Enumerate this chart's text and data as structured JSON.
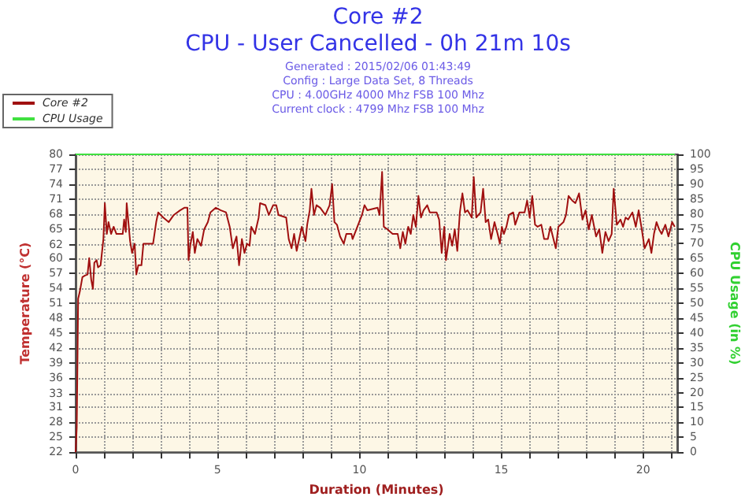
{
  "chart_data": {
    "type": "line",
    "title": "Core #2",
    "subtitle": "CPU - User Cancelled - 0h 21m 10s",
    "annotations": [
      "Generated : 2015/02/06 01:43:49",
      "Config : Large Data Set, 8 Threads",
      "CPU : 4.00GHz 4000 Mhz FSB 100 Mhz",
      "Current clock : 4799 Mhz FSB 100 Mhz"
    ],
    "xlabel": "Duration (Minutes)",
    "ylabel": "Temperature (°C)",
    "y2label": "CPU Usage (in %)",
    "series": [
      {
        "name": "Core #2",
        "color": "#a01010",
        "x": [
          0,
          0.04,
          0.09,
          0.15,
          0.24,
          0.33,
          0.42,
          0.48,
          0.55,
          0.61,
          0.66,
          0.74,
          0.79,
          0.88,
          0.98,
          1.03,
          1.1,
          1.16,
          1.25,
          1.34,
          1.44,
          1.66,
          1.71,
          1.77,
          1.8,
          1.86,
          1.92,
          1.99,
          2.08,
          2.14,
          2.21,
          2.32,
          2.39,
          2.73,
          2.84,
          2.91,
          3.09,
          3.28,
          3.46,
          3.68,
          3.83,
          3.94,
          3.98,
          4.05,
          4.13,
          4.2,
          4.29,
          4.42,
          4.53,
          4.66,
          4.75,
          4.94,
          5.12,
          5.3,
          5.43,
          5.54,
          5.67,
          5.76,
          5.86,
          5.95,
          6.04,
          6.13,
          6.19,
          6.32,
          6.45,
          6.5,
          6.69,
          6.81,
          6.96,
          7.07,
          7.15,
          7.42,
          7.51,
          7.61,
          7.7,
          7.79,
          7.97,
          8.1,
          8.16,
          8.25,
          8.31,
          8.4,
          8.49,
          8.62,
          8.8,
          8.95,
          9.04,
          9.12,
          9.21,
          9.32,
          9.45,
          9.54,
          9.72,
          9.76,
          10.09,
          10.18,
          10.28,
          10.64,
          10.71,
          10.8,
          10.86,
          10.99,
          11.17,
          11.35,
          11.44,
          11.53,
          11.62,
          11.72,
          11.81,
          11.9,
          11.99,
          12.08,
          12.17,
          12.26,
          12.39,
          12.48,
          12.72,
          12.81,
          12.9,
          12.99,
          13.05,
          13.18,
          13.27,
          13.36,
          13.45,
          13.54,
          13.63,
          13.72,
          13.81,
          13.96,
          14.03,
          14.12,
          14.27,
          14.36,
          14.45,
          14.54,
          14.64,
          14.76,
          14.87,
          14.95,
          15.02,
          15.09,
          15.18,
          15.27,
          15.42,
          15.49,
          15.64,
          15.82,
          15.91,
          16,
          16.09,
          16.19,
          16.28,
          16.41,
          16.51,
          16.64,
          16.73,
          16.92,
          17.01,
          17.19,
          17.28,
          17.37,
          17.5,
          17.61,
          17.74,
          17.86,
          17.97,
          18.08,
          18.19,
          18.34,
          18.45,
          18.56,
          18.67,
          18.78,
          18.89,
          18.96,
          19.07,
          19.2,
          19.29,
          19.38,
          19.47,
          19.62,
          19.74,
          19.84,
          19.95,
          20.05,
          20.2,
          20.29,
          20.38,
          20.47,
          20.56,
          20.65,
          20.78,
          20.89,
          21.02,
          21.11
        ],
        "values": [
          22,
          26.8,
          51.9,
          53.3,
          56.1,
          56.4,
          56.6,
          59.8,
          55.6,
          53.8,
          58.9,
          59.4,
          58,
          58.4,
          63.5,
          70.5,
          64.5,
          66.8,
          64.5,
          65.9,
          64.5,
          64.5,
          67.3,
          64.9,
          70.5,
          66.8,
          63.1,
          60.8,
          62.6,
          56.6,
          58.4,
          58.4,
          62.6,
          62.6,
          66.8,
          68.7,
          67.7,
          66.8,
          68.2,
          69.1,
          69.6,
          69.6,
          59.4,
          62.6,
          64.9,
          60.8,
          63.5,
          62.2,
          65.4,
          66.8,
          68.7,
          69.6,
          69.1,
          68.7,
          65.9,
          61.7,
          64,
          58.4,
          63.5,
          60.8,
          62.6,
          62.2,
          65.9,
          64.5,
          67.7,
          70.5,
          70.1,
          68.2,
          70.1,
          70.1,
          68.2,
          67.7,
          63.5,
          61.7,
          64.5,
          61.2,
          65.9,
          63.1,
          66.3,
          69.1,
          73.3,
          68.2,
          70.1,
          69.6,
          68.2,
          70.1,
          74.2,
          66.8,
          66.3,
          64,
          62.6,
          64.5,
          64.5,
          63.5,
          68.2,
          70.1,
          69.1,
          69.6,
          68.2,
          76.6,
          65.9,
          65.4,
          64.5,
          64.5,
          61.7,
          64.9,
          62.6,
          65.9,
          64.5,
          68.2,
          65.9,
          71.9,
          67.7,
          69.1,
          70.1,
          68.7,
          68.7,
          67.3,
          60.8,
          65.9,
          59.4,
          64.5,
          62.2,
          65.4,
          61.2,
          68.7,
          72.4,
          68.7,
          69.1,
          67.7,
          75.6,
          67.7,
          68.7,
          73.3,
          66.8,
          67.3,
          63.5,
          66.8,
          64.5,
          62.6,
          65.9,
          64.5,
          65.9,
          68.2,
          68.7,
          66.3,
          68.7,
          68.7,
          71,
          67.7,
          71.9,
          66.3,
          65.9,
          66.3,
          63.5,
          63.5,
          65.9,
          61.7,
          65.9,
          66.8,
          68.2,
          71.9,
          71,
          70.5,
          72.4,
          67.3,
          69.1,
          65.4,
          68.2,
          64,
          65.4,
          60.8,
          64.9,
          63.1,
          64.5,
          73.3,
          66.3,
          67.3,
          65.9,
          67.7,
          67.3,
          68.7,
          65.9,
          69.1,
          65.4,
          61.7,
          63.5,
          60.8,
          64.5,
          66.8,
          65.4,
          64.5,
          66.3,
          64,
          66.8,
          65.9
        ]
      },
      {
        "name": "CPU Usage",
        "color": "#40e040",
        "axis": "y2",
        "x": [
          0,
          21.11
        ],
        "values": [
          100,
          100
        ]
      }
    ],
    "xlim": [
      0,
      21.2
    ],
    "xticks": [
      0,
      {
        "value": 1,
        "label": null
      },
      {
        "value": 2,
        "label": null
      },
      {
        "value": 3,
        "label": null
      },
      {
        "value": 4,
        "label": null
      },
      5,
      {
        "value": 6,
        "label": null
      },
      {
        "value": 7,
        "label": null
      },
      {
        "value": 8,
        "label": null
      },
      {
        "value": 9,
        "label": null
      },
      10,
      {
        "value": 11,
        "label": null
      },
      {
        "value": 12,
        "label": null
      },
      {
        "value": 13,
        "label": null
      },
      {
        "value": 14,
        "label": null
      },
      15,
      {
        "value": 16,
        "label": null
      },
      {
        "value": 17,
        "label": null
      },
      {
        "value": 18,
        "label": null
      },
      {
        "value": 19,
        "label": null
      },
      20,
      {
        "value": 21,
        "label": null
      }
    ],
    "ylim": [
      22,
      80
    ],
    "yticks": [
      22,
      {
        "value": 24.9,
        "label": "25"
      },
      {
        "value": 27.8,
        "label": "28"
      },
      {
        "value": 30.7,
        "label": "31"
      },
      {
        "value": 33.4,
        "label": "33"
      },
      {
        "value": 36.5,
        "label": "36"
      },
      {
        "value": 39.4,
        "label": "39"
      },
      {
        "value": 42.3,
        "label": "42"
      },
      {
        "value": 45.2,
        "label": "45"
      },
      {
        "value": 48.1,
        "label": "48"
      },
      51,
      {
        "value": 53.9,
        "label": "54"
      },
      {
        "value": 56.8,
        "label": "57"
      },
      {
        "value": 59.7,
        "label": "60"
      },
      {
        "value": 62.4,
        "label": "62"
      },
      {
        "value": 65.5,
        "label": "65"
      },
      {
        "value": 68.4,
        "label": "68"
      },
      {
        "value": 71.3,
        "label": "71"
      },
      {
        "value": 74.2,
        "label": "74"
      },
      {
        "value": 77.1,
        "label": "77"
      },
      80
    ],
    "y2lim": [
      0,
      100
    ],
    "y2ticks": [
      0,
      5,
      10,
      15,
      20,
      25,
      30,
      35,
      40,
      45,
      50,
      55,
      60,
      65,
      70,
      75,
      80,
      85,
      90,
      95,
      100
    ],
    "grid": true,
    "legend": "top left",
    "marker": "none"
  }
}
